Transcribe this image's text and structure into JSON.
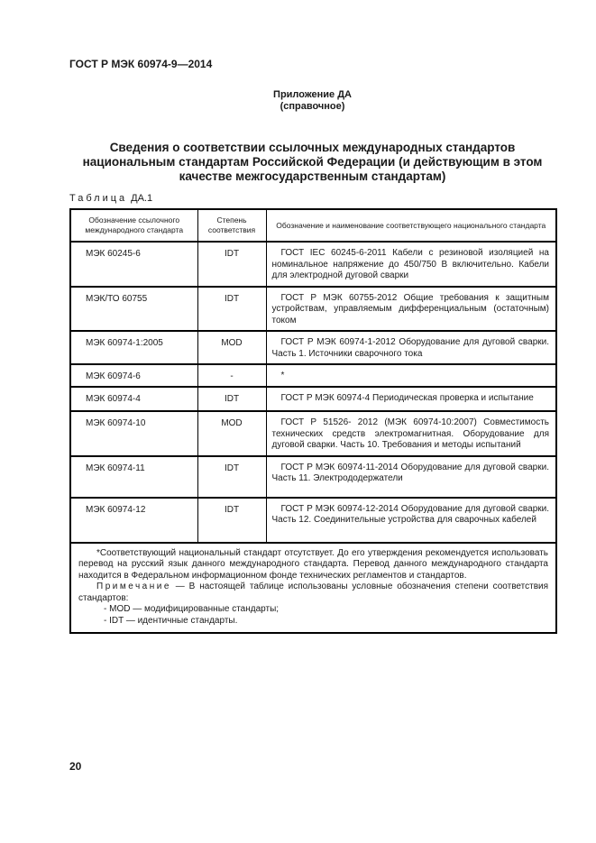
{
  "page": {
    "doc_number": "ГОСТ Р МЭК 60974-9—2014",
    "appendix": "Приложение ДА",
    "appendix_type": "(справочное)",
    "title": "Сведения о соответствии ссылочных международных стандартов национальным стандартам Российской Федерации (и действующим в этом качестве межгосударственным стандартам)",
    "table_label_word": "Таблица",
    "table_label_number": "ДА.1",
    "page_number": "20"
  },
  "table": {
    "headers": [
      "Обозначение ссылочного международного стандарта",
      "Степень соответствия",
      "Обозначение и наименование соответствующего национального стандарта"
    ],
    "rows": [
      {
        "ref": "МЭК 60245-6",
        "degree": "IDT",
        "national": "ГОСТ IEC 60245-6-2011 Кабели с резиновой изоляцией на номинальное напряжение до 450/750 В включительно. Кабели для электродной дуговой сварки"
      },
      {
        "ref": "МЭК/ТО 60755",
        "degree": "IDT",
        "national": "ГОСТ Р МЭК 60755-2012 Общие требования к защитным устройствам, управляемым дифференциальным (остаточным) током"
      },
      {
        "ref": "МЭК 60974-1:2005",
        "degree": "MOD",
        "national": "ГОСТ Р МЭК 60974-1-2012 Оборудование для дуговой сварки. Часть 1. Источники сварочного тока"
      },
      {
        "ref": "МЭК 60974-6",
        "degree": "-",
        "national": "*"
      },
      {
        "ref": "МЭК 60974-4",
        "degree": "IDT",
        "national": "ГОСТ Р МЭК 60974-4 Периодическая проверка и испытание"
      },
      {
        "ref": "МЭК 60974-10",
        "degree": "MOD",
        "national": "ГОСТ Р 51526- 2012 (МЭК 60974-10:2007) Совместимость технических средств электромагнитная. Оборудование для дуговой сварки. Часть 10. Требования и методы испытаний"
      },
      {
        "ref": "МЭК 60974-11",
        "degree": "IDT",
        "national": "ГОСТ Р МЭК 60974-11-2014 Оборудование для дуговой сварки. Часть 11. Электрододержатели"
      },
      {
        "ref": "МЭК 60974-12",
        "degree": "IDT",
        "national": "ГОСТ Р МЭК 60974-12-2014 Оборудование для дуговой сварки. Часть 12. Соединительные устройства для сварочных кабелей"
      }
    ],
    "footnote": "*Соответствующий национальный стандарт отсутствует. До его утверждения рекомендуется использовать перевод на русский язык данного международного стандарта. Перевод данного международного стандарта находится в Федеральном информационном фонде технических регламентов и стандартов.",
    "note_label": "Примечание",
    "note_text": "— В настоящей таблице использованы условные обозначения степени соответствия стандартов:",
    "note_items": [
      "- MOD — модифицированные стандарты;",
      "- IDT — идентичные стандарты."
    ]
  }
}
